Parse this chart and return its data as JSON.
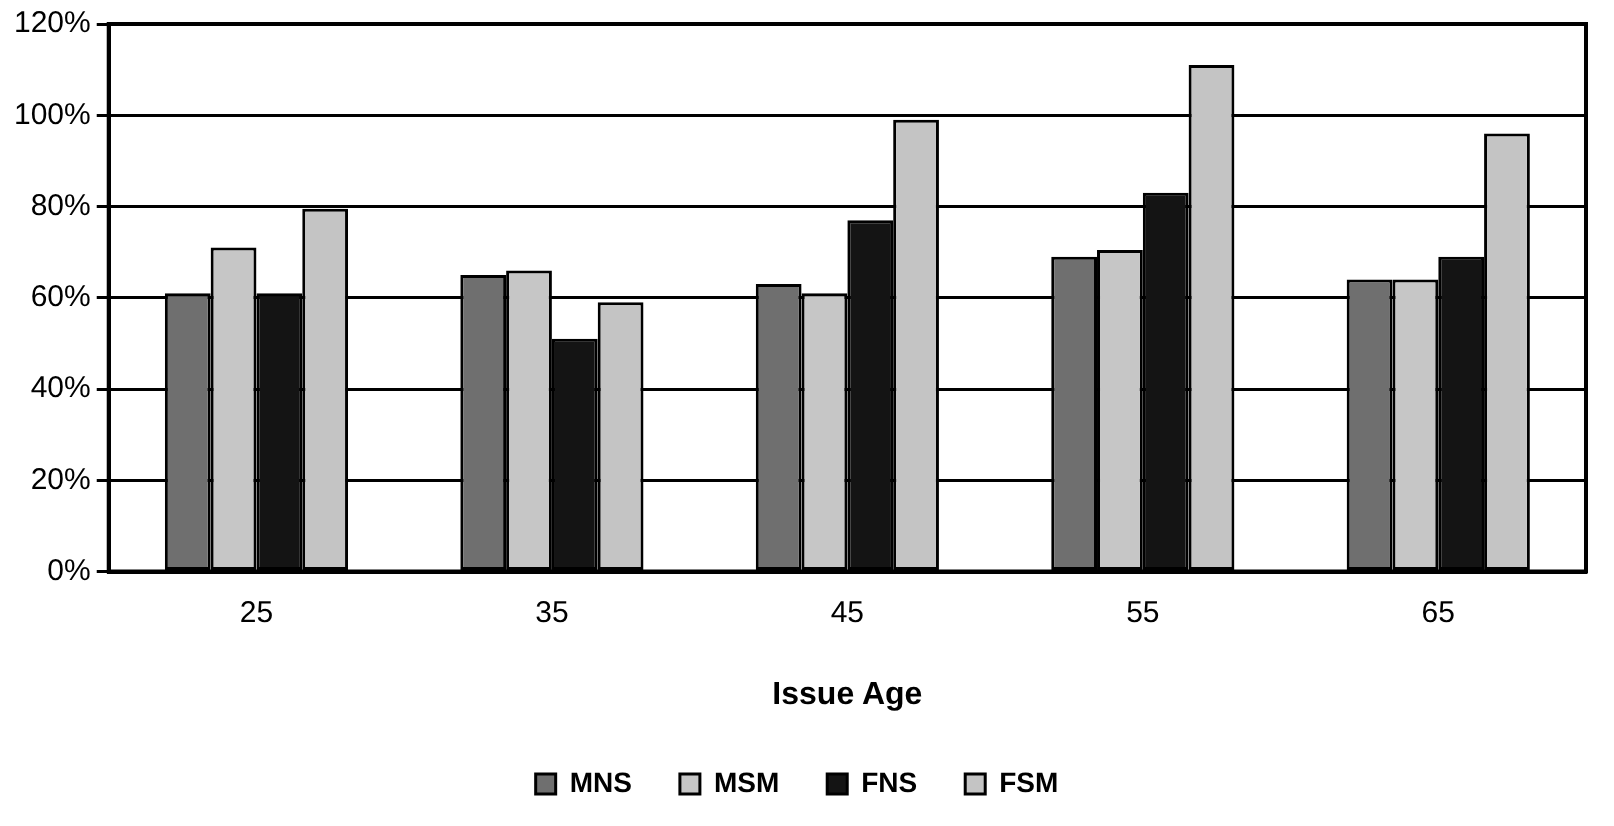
{
  "chart_data": {
    "type": "bar",
    "xlabel": "Issue Age",
    "categories": [
      "25",
      "35",
      "45",
      "55",
      "65"
    ],
    "series": [
      {
        "name": "MNS",
        "color": "#6f6f6f",
        "values": [
          61,
          65,
          63,
          69,
          64
        ]
      },
      {
        "name": "MSM",
        "color": "#c6c6c6",
        "values": [
          71,
          66,
          61,
          70.5,
          64
        ]
      },
      {
        "name": "FNS",
        "color": "#141414",
        "values": [
          61,
          51,
          77,
          83,
          69
        ]
      },
      {
        "name": "FSM",
        "color": "#c4c4c4",
        "values": [
          79.5,
          59,
          99,
          111,
          96
        ]
      }
    ],
    "ylim": [
      0,
      120
    ],
    "yticks": [
      {
        "value": 0,
        "label": "0%"
      },
      {
        "value": 20,
        "label": "20%"
      },
      {
        "value": 40,
        "label": "40%"
      },
      {
        "value": 60,
        "label": "60%"
      },
      {
        "value": 80,
        "label": "80%"
      },
      {
        "value": 100,
        "label": "100%"
      },
      {
        "value": 120,
        "label": "120%"
      }
    ],
    "grid": "y",
    "legend": "bottom"
  }
}
